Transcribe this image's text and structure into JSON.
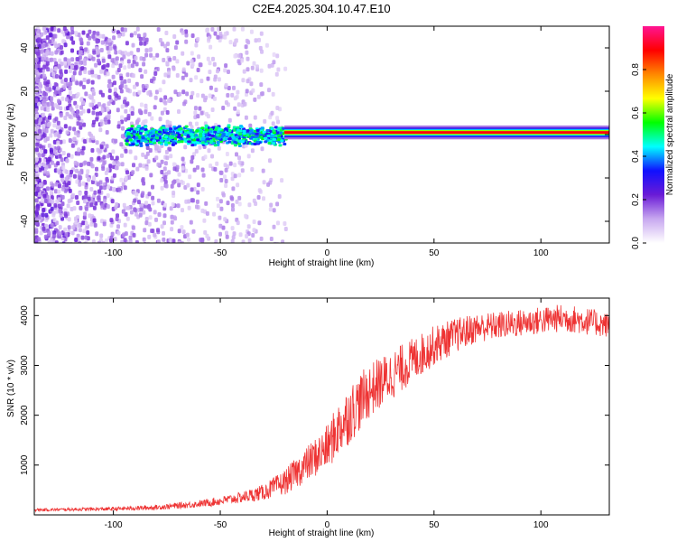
{
  "title": "C2E4.2025.304.10.47.E10",
  "colors": {
    "snr_line": "#ee3333",
    "colorbar_stops": [
      "#ffffff",
      "#c8a8f0",
      "#6a1bd6",
      "#1010ff",
      "#00ffff",
      "#00ff00",
      "#ffff00",
      "#ff8800",
      "#ff0000",
      "#ff1493"
    ]
  },
  "chart_data": [
    {
      "type": "heatmap",
      "name": "spectrogram",
      "xlabel": "Height of straight line (km)",
      "ylabel": "Frequency (Hz)",
      "xlim": [
        -137,
        132
      ],
      "ylim": [
        -50,
        50
      ],
      "x_ticks": [
        -100,
        -50,
        0,
        50,
        100
      ],
      "y_ticks": [
        -40,
        -20,
        0,
        20,
        40
      ],
      "colorbar": {
        "label": "Normalized spectral amplitude",
        "range": [
          0,
          1
        ],
        "ticks": [
          "0.0",
          "0.2",
          "0.4",
          "0.6",
          "0.8"
        ]
      },
      "description_series": [
        {
          "name": "noise_scatter",
          "x_range": [
            -137,
            -20
          ],
          "freq_range": [
            -50,
            50
          ],
          "amplitude": [
            0.05,
            0.25
          ]
        },
        {
          "name": "carrier_broad",
          "x_range": [
            -95,
            -20
          ],
          "freq_center": 0,
          "freq_halfwidth": 5,
          "amplitude": [
            0.3,
            0.55
          ]
        },
        {
          "name": "carrier_narrow",
          "x_range": [
            -20,
            132
          ],
          "freq_center": 1,
          "freq_halfwidth": 1,
          "amplitude": [
            0.8,
            0.9
          ]
        }
      ]
    },
    {
      "type": "line",
      "name": "snr",
      "xlabel": "Height of straight line (km)",
      "ylabel": "SNR (10 * v/v)",
      "xlim": [
        -137,
        132
      ],
      "ylim": [
        0,
        4350
      ],
      "x_ticks": [
        -100,
        -50,
        0,
        50,
        100
      ],
      "y_ticks": [
        1000,
        2000,
        3000,
        4000
      ],
      "series": [
        {
          "name": "SNR",
          "x": [
            -137,
            -120,
            -100,
            -80,
            -60,
            -50,
            -40,
            -30,
            -20,
            -10,
            0,
            5,
            10,
            20,
            30,
            40,
            50,
            60,
            70,
            80,
            90,
            100,
            110,
            120,
            132
          ],
          "y": [
            100,
            110,
            120,
            150,
            220,
            280,
            350,
            450,
            650,
            1000,
            1350,
            1700,
            2000,
            2500,
            2800,
            3100,
            3400,
            3600,
            3750,
            3800,
            3850,
            3900,
            3950,
            3900,
            3800
          ],
          "noise_amplitude": [
            30,
            30,
            40,
            50,
            70,
            90,
            110,
            160,
            250,
            350,
            450,
            550,
            600,
            550,
            500,
            450,
            400,
            350,
            300,
            280,
            280,
            280,
            280,
            280,
            250
          ]
        }
      ]
    }
  ]
}
